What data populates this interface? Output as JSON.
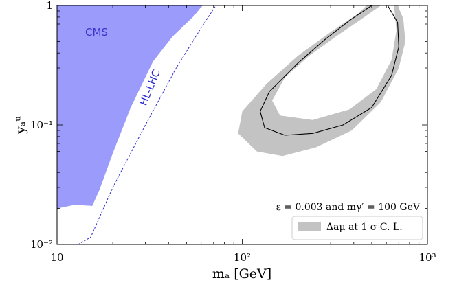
{
  "chart_data": {
    "type": "area",
    "xscale": "log",
    "yscale": "log",
    "xlim": [
      10,
      1000
    ],
    "ylim": [
      0.01,
      1
    ],
    "xticks": [
      {
        "value": 10,
        "label": "10"
      },
      {
        "value": 100,
        "label": "10²"
      },
      {
        "value": 1000,
        "label": "10³"
      }
    ],
    "yticks": [
      {
        "value": 0.01,
        "label": "10⁻²"
      },
      {
        "value": 0.1,
        "label": "10⁻¹"
      },
      {
        "value": 1,
        "label": "1"
      }
    ],
    "xlabel": "mₐ [GeV]",
    "ylabel": "yₐᵘ",
    "annotation": "ε = 0.003 and mγ′ = 100 GeV",
    "legend": {
      "placement": "bottom-right",
      "label": "Δaμ at 1 σ C. L."
    },
    "colors": {
      "cms": "#9b9bfb",
      "band": "#c3c3c3",
      "hl": "#2b2bd0",
      "central": "#000000"
    },
    "cms_region": {
      "label": "CMS",
      "label_pos": {
        "x": 14.2,
        "y": 0.56
      },
      "boundary": [
        {
          "x": 10,
          "y": 1
        },
        {
          "x": 61,
          "y": 1
        },
        {
          "x": 55,
          "y": 0.82
        },
        {
          "x": 42,
          "y": 0.55
        },
        {
          "x": 33,
          "y": 0.34
        },
        {
          "x": 25,
          "y": 0.14
        },
        {
          "x": 20,
          "y": 0.058
        },
        {
          "x": 17,
          "y": 0.029
        },
        {
          "x": 15.5,
          "y": 0.021
        },
        {
          "x": 12.5,
          "y": 0.0215
        },
        {
          "x": 10,
          "y": 0.02
        }
      ]
    },
    "hl_lhc": {
      "label": "HL-LHC",
      "label_pos": {
        "x": 33,
        "y": 0.2
      },
      "line": [
        {
          "x": 13,
          "y": 0.01
        },
        {
          "x": 15.2,
          "y": 0.0115
        },
        {
          "x": 20,
          "y": 0.03
        },
        {
          "x": 30,
          "y": 0.1
        },
        {
          "x": 44,
          "y": 0.3
        },
        {
          "x": 60,
          "y": 0.65
        },
        {
          "x": 72,
          "y": 1
        }
      ]
    },
    "delta_a_mu_band": [
      {
        "x": 690,
        "y": 1
      },
      {
        "x": 740,
        "y": 0.78
      },
      {
        "x": 760,
        "y": 0.5
      },
      {
        "x": 700,
        "y": 0.3
      },
      {
        "x": 560,
        "y": 0.155
      },
      {
        "x": 390,
        "y": 0.09
      },
      {
        "x": 250,
        "y": 0.065
      },
      {
        "x": 165,
        "y": 0.055
      },
      {
        "x": 120,
        "y": 0.06
      },
      {
        "x": 95,
        "y": 0.085
      },
      {
        "x": 100,
        "y": 0.13
      },
      {
        "x": 135,
        "y": 0.22
      },
      {
        "x": 200,
        "y": 0.38
      },
      {
        "x": 300,
        "y": 0.6
      },
      {
        "x": 420,
        "y": 0.85
      },
      {
        "x": 470,
        "y": 1
      },
      {
        "x": 560,
        "y": 1
      },
      {
        "x": 430,
        "y": 0.75
      },
      {
        "x": 320,
        "y": 0.55
      },
      {
        "x": 230,
        "y": 0.38
      },
      {
        "x": 170,
        "y": 0.25
      },
      {
        "x": 145,
        "y": 0.16
      },
      {
        "x": 160,
        "y": 0.12
      },
      {
        "x": 240,
        "y": 0.11
      },
      {
        "x": 380,
        "y": 0.135
      },
      {
        "x": 530,
        "y": 0.2
      },
      {
        "x": 640,
        "y": 0.35
      },
      {
        "x": 680,
        "y": 0.62
      },
      {
        "x": 660,
        "y": 1
      }
    ],
    "delta_a_mu_central": [
      {
        "x": 610,
        "y": 1
      },
      {
        "x": 690,
        "y": 0.72
      },
      {
        "x": 700,
        "y": 0.45
      },
      {
        "x": 640,
        "y": 0.26
      },
      {
        "x": 500,
        "y": 0.14
      },
      {
        "x": 350,
        "y": 0.1
      },
      {
        "x": 240,
        "y": 0.085
      },
      {
        "x": 170,
        "y": 0.082
      },
      {
        "x": 132,
        "y": 0.095
      },
      {
        "x": 125,
        "y": 0.13
      },
      {
        "x": 140,
        "y": 0.19
      },
      {
        "x": 200,
        "y": 0.33
      },
      {
        "x": 280,
        "y": 0.52
      },
      {
        "x": 380,
        "y": 0.75
      },
      {
        "x": 500,
        "y": 1
      }
    ]
  }
}
